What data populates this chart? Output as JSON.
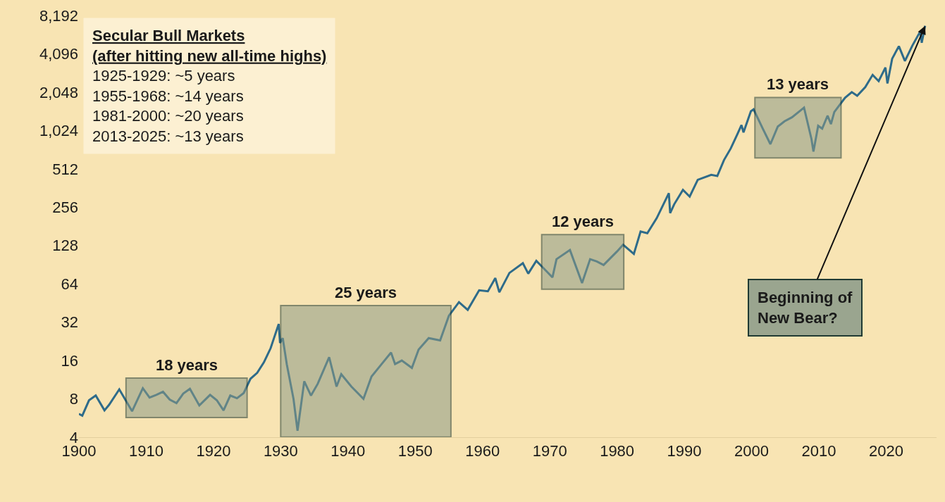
{
  "chart_data": {
    "type": "line",
    "title": "Secular Bull Markets",
    "subtitle": "(after hitting new all-time highs)",
    "annotations": [
      "1925-1929: ~5 years",
      "1955-1968: ~14 years",
      "1981-2000: ~20 years",
      "2013-2025: ~13 years",
      {
        "text": "Beginning of\nNew Bear?",
        "x": 2025.8,
        "y": 6800
      }
    ],
    "x": [
      1900,
      1900.5,
      1901.5,
      1902.5,
      1903.8,
      1904.5,
      1906,
      1907.9,
      1909.5,
      1910.5,
      1911.5,
      1912.5,
      1913.5,
      1914.5,
      1915.5,
      1916.5,
      1917.9,
      1919.5,
      1920.5,
      1921.5,
      1922.5,
      1923.5,
      1924.5,
      1925.5,
      1926.5,
      1927.5,
      1928.5,
      1929.7,
      1929.9,
      1930.3,
      1930.9,
      1931.9,
      1932.5,
      1933.5,
      1934.5,
      1935.5,
      1937.2,
      1938.3,
      1939,
      1940.5,
      1942.3,
      1943.5,
      1945,
      1946.4,
      1947,
      1948,
      1949.5,
      1950.5,
      1952,
      1953.7,
      1955,
      1956.5,
      1957.8,
      1959.5,
      1960.8,
      1961.9,
      1962.5,
      1964,
      1966,
      1966.8,
      1968,
      1970.4,
      1971,
      1973,
      1974.8,
      1976,
      1977,
      1978,
      1980,
      1980.9,
      1982.5,
      1983.5,
      1984.5,
      1985.9,
      1987.7,
      1987.9,
      1988.5,
      1989.8,
      1990.8,
      1992,
      1994,
      1994.9,
      1995.9,
      1996.9,
      1997.9,
      1998.5,
      1998.8,
      1999.9,
      2000.3,
      2001.7,
      2002.8,
      2003.9,
      2004.9,
      2006,
      2007.8,
      2008.9,
      2009.2,
      2009.9,
      2010.5,
      2011.3,
      2011.8,
      2012.3,
      2013.9,
      2014.9,
      2015.7,
      2016.9,
      2018,
      2018.9,
      2019.9,
      2020.2,
      2020.9,
      2021.9,
      2022.8,
      2023.9,
      2024.9,
      2025.1,
      2025.3,
      2025.8
    ],
    "series": [
      {
        "color": "#2e6b8a",
        "values": [
          6.1,
          5.9,
          7.8,
          8.5,
          6.5,
          7.2,
          9.5,
          6.4,
          9.7,
          8.2,
          8.6,
          9.1,
          7.9,
          7.4,
          8.8,
          9.6,
          7.1,
          8.6,
          7.8,
          6.5,
          8.5,
          8.1,
          8.9,
          11.5,
          12.8,
          15.5,
          20,
          31,
          22,
          24,
          15,
          8,
          4.5,
          11,
          8.5,
          10.5,
          17,
          10,
          12.5,
          10,
          8,
          12,
          15,
          18.5,
          15,
          16,
          14,
          19.5,
          24,
          23,
          36,
          46,
          40,
          57,
          56,
          71,
          55,
          78,
          93,
          77,
          97,
          72,
          100,
          118,
          65,
          100,
          96,
          90,
          115,
          130,
          110,
          165,
          160,
          210,
          330,
          230,
          270,
          350,
          310,
          420,
          460,
          450,
          600,
          740,
          960,
          1130,
          990,
          1450,
          1500,
          1050,
          800,
          1100,
          1210,
          1300,
          1550,
          880,
          700,
          1115,
          1060,
          1340,
          1150,
          1430,
          1850,
          2050,
          1920,
          2240,
          2800,
          2500,
          3200,
          2400,
          3750,
          4700,
          3600,
          4750,
          5900,
          6100,
          5000,
          6800
        ]
      }
    ],
    "xlim": [
      1900,
      2027.5
    ],
    "xticks": [
      1900,
      1910,
      1920,
      1930,
      1940,
      1950,
      1960,
      1970,
      1980,
      1990,
      2000,
      2010,
      2020
    ],
    "ylim": [
      4,
      8192
    ],
    "yticks": [
      4,
      8,
      16,
      32,
      64,
      128,
      256,
      512,
      {
        "value": 1024,
        "label": "1,024"
      },
      {
        "value": 2048,
        "label": "2,048"
      },
      {
        "value": 4096,
        "label": "4,096"
      },
      {
        "value": 8192,
        "label": "8,192"
      }
    ],
    "log": true,
    "grid": false,
    "legend": false,
    "bands": [
      {
        "axis": "x",
        "from": 1907,
        "to": 1925,
        "label": "18 years",
        "color": "#8c9a86"
      },
      {
        "axis": "x",
        "from": 1930,
        "to": 1955.3,
        "label": "25 years",
        "color": "#8c9a86"
      },
      {
        "axis": "x",
        "from": 1968.8,
        "to": 1981,
        "label": "12 years",
        "color": "#8c9a86"
      },
      {
        "axis": "x",
        "from": 2000.5,
        "to": 2013.3,
        "label": "13 years",
        "color": "#8c9a86"
      }
    ]
  }
}
